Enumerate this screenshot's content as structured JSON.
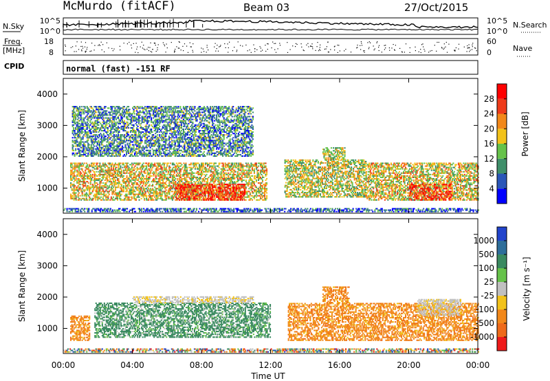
{
  "header": {
    "station": "McMurdo (fitACF)",
    "beam": "Beam 03",
    "date": "27/Oct/2015"
  },
  "top_panels": {
    "nsky_label": "N.Sky",
    "nsky_ticks": [
      "10^5",
      "10^0"
    ],
    "nsearch_label": "N.Search",
    "nsearch_ticks": [
      "10^5",
      "10^0"
    ],
    "freq_label": "Freq.",
    "freq_unit": "[MHz]",
    "freq_ticks": [
      "18",
      "8"
    ],
    "nave_label": "Nave",
    "nave_ticks": [
      "60",
      "0"
    ],
    "cpid_label": "CPID",
    "cpid_text": "normal (fast) -151 RF"
  },
  "chart_data": [
    {
      "type": "heatmap",
      "name": "power-panel",
      "xlabel": "",
      "ylabel": "Slant Range [km]",
      "xlim": [
        0,
        24
      ],
      "ylim": [
        200,
        4500
      ],
      "x_ticks": [
        "00:00",
        "04:00",
        "08:00",
        "12:00",
        "16:00",
        "20:00",
        "00:00"
      ],
      "y_ticks": [
        "1000",
        "2000",
        "3000",
        "4000"
      ],
      "y_tick_values": [
        1000,
        2000,
        3000,
        4000
      ],
      "colorbar": {
        "label": "Power [dB]",
        "ticks": [
          "4",
          "8",
          "12",
          "16",
          "20",
          "24",
          "28"
        ],
        "range": [
          0,
          32
        ],
        "colors": [
          "#0000ff",
          "#2a56b8",
          "#3f8f6a",
          "#66c24a",
          "#f2c21a",
          "#f2881a",
          "#ee3b1a",
          "#ff0000"
        ]
      },
      "echo_regions": [
        {
          "t0": 0.0,
          "t1": 24.0,
          "r0": 230,
          "r1": 330,
          "level": 0.2
        },
        {
          "t0": 0.4,
          "t1": 11.8,
          "r0": 600,
          "r1": 1800,
          "level": 0.55
        },
        {
          "t0": 6.5,
          "t1": 10.5,
          "r0": 600,
          "r1": 1100,
          "level": 0.85
        },
        {
          "t0": 12.8,
          "t1": 17.5,
          "r0": 700,
          "r1": 1900,
          "level": 0.5
        },
        {
          "t0": 15.0,
          "t1": 16.3,
          "r0": 1900,
          "r1": 2300,
          "level": 0.5
        },
        {
          "t0": 17.5,
          "t1": 24.0,
          "r0": 600,
          "r1": 1800,
          "level": 0.55
        },
        {
          "t0": 20.0,
          "t1": 22.5,
          "r0": 600,
          "r1": 1100,
          "level": 0.85
        },
        {
          "t0": 0.5,
          "t1": 11.0,
          "r0": 2000,
          "r1": 3600,
          "level": 0.3
        }
      ]
    },
    {
      "type": "heatmap",
      "name": "velocity-panel",
      "xlabel": "Time UT",
      "ylabel": "Slant Range [km]",
      "xlim": [
        0,
        24
      ],
      "ylim": [
        200,
        4500
      ],
      "x_ticks": [
        "00:00",
        "04:00",
        "08:00",
        "12:00",
        "16:00",
        "20:00",
        "00:00"
      ],
      "y_ticks": [
        "1000",
        "2000",
        "3000",
        "4000"
      ],
      "y_tick_values": [
        1000,
        2000,
        3000,
        4000
      ],
      "colorbar": {
        "label": "Velocity [m s⁻¹]",
        "ticks": [
          "1000",
          "500",
          "100",
          "25",
          "-25",
          "-100",
          "-500",
          "-1000"
        ],
        "colors": [
          "#2244cc",
          "#2e6e9a",
          "#3a8a60",
          "#66c24a",
          "#c0c0c0",
          "#f2c21a",
          "#f2881a",
          "#ee6a1a",
          "#ee1a1a"
        ]
      },
      "echo_regions": [
        {
          "t0": 0.0,
          "t1": 24.0,
          "r0": 230,
          "r1": 330,
          "class": "mixed"
        },
        {
          "t0": 0.4,
          "t1": 1.5,
          "r0": 600,
          "r1": 1400,
          "class": "negative"
        },
        {
          "t0": 1.8,
          "t1": 12.0,
          "r0": 700,
          "r1": 1800,
          "class": "positive"
        },
        {
          "t0": 4.0,
          "t1": 11.0,
          "r0": 1800,
          "r1": 2000,
          "class": "neutral"
        },
        {
          "t0": 13.0,
          "t1": 24.0,
          "r0": 600,
          "r1": 1800,
          "class": "negative"
        },
        {
          "t0": 15.0,
          "t1": 16.5,
          "r0": 1800,
          "r1": 2300,
          "class": "negative"
        },
        {
          "t0": 20.5,
          "t1": 23.0,
          "r0": 1400,
          "r1": 1900,
          "class": "neutral"
        }
      ]
    }
  ]
}
